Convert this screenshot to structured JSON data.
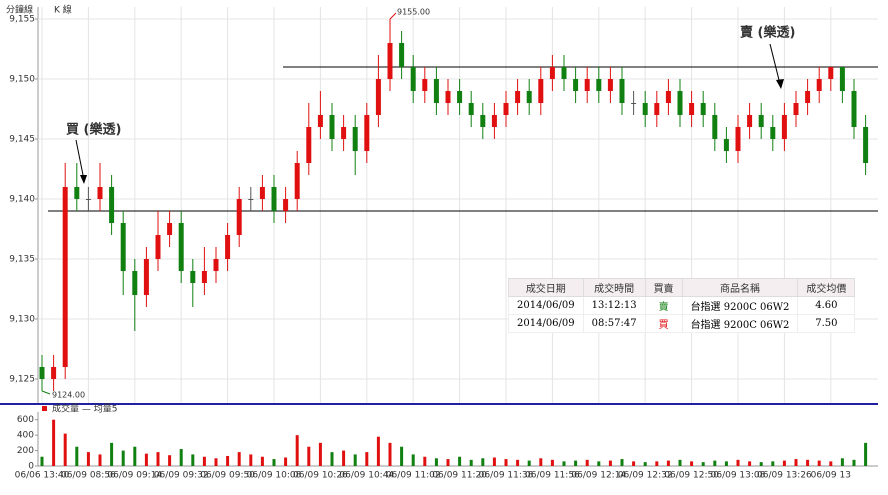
{
  "tabs": [
    "分鐘線",
    "K 線"
  ],
  "chart_data": [
    {
      "type": "candlestick",
      "x": [
        "06/06 13:40",
        null,
        null,
        null,
        "06/09 08:56",
        null,
        null,
        null,
        "06/09 09:14",
        null,
        null,
        null,
        "06/09 09:32",
        null,
        null,
        null,
        "06/09 09:50",
        null,
        null,
        null,
        "06/09 10:08",
        null,
        null,
        null,
        "06/09 10:26",
        null,
        null,
        null,
        "06/09 10:44",
        null,
        null,
        null,
        "06/09 11:02",
        null,
        null,
        null,
        "06/09 11:20",
        null,
        null,
        null,
        "06/09 11:38",
        null,
        null,
        null,
        "06/09 11:56",
        null,
        null,
        null,
        "06/09 12:14",
        null,
        null,
        null,
        "06/09 12:32",
        null,
        null,
        null,
        "06/09 12:50",
        null,
        null,
        null,
        "06/09 13:08",
        null,
        null,
        null,
        "06/09 13:26",
        null,
        null,
        null,
        "06/09 13",
        null,
        null,
        null
      ],
      "open": [
        9126,
        9125,
        9126,
        9141,
        9140,
        9140,
        9141,
        9138,
        9134,
        9132,
        9135,
        9137,
        9138,
        9134,
        9133,
        9134,
        9135,
        9137,
        9140,
        9140,
        9141,
        9139,
        9140,
        9143,
        9146,
        9147,
        9145,
        9146,
        9144,
        9147,
        9150,
        9153,
        9151,
        9149,
        9150,
        9148,
        9149,
        9148,
        9147,
        9146,
        9147,
        9148,
        9149,
        9148,
        9150,
        9151,
        9150,
        9149,
        9150,
        9149,
        9150,
        9148,
        9148,
        9147,
        9148,
        9149,
        9147,
        9148,
        9147,
        9145,
        9144,
        9146,
        9147,
        9146,
        9145,
        9147,
        9148,
        9149,
        9150,
        9151,
        9149,
        9146
      ],
      "high": [
        9127,
        9127,
        9143,
        9143,
        9141,
        9143,
        9142,
        9139,
        9135,
        9136,
        9139,
        9139,
        9139,
        9135,
        9136,
        9136,
        9138,
        9141,
        9141,
        9142,
        9142,
        9141,
        9144,
        9148,
        9149,
        9148,
        9147,
        9147,
        9148,
        9152,
        9155,
        9154,
        9152,
        9151,
        9151,
        9150,
        9150,
        9149,
        9148,
        9148,
        9149,
        9150,
        9150,
        9151,
        9152,
        9152,
        9151,
        9151,
        9151,
        9151,
        9151,
        9149,
        9149,
        9149,
        9150,
        9150,
        9149,
        9149,
        9148,
        9146,
        9147,
        9148,
        9148,
        9147,
        9148,
        9149,
        9150,
        9151,
        9151,
        9151,
        9150,
        9147
      ],
      "low": [
        9124,
        9124,
        9125,
        9139,
        9139,
        9139,
        9137,
        9132,
        9129,
        9131,
        9134,
        9136,
        9133,
        9131,
        9132,
        9133,
        9134,
        9136,
        9139,
        9139,
        9138,
        9138,
        9139,
        9142,
        9145,
        9144,
        9144,
        9142,
        9143,
        9146,
        9149,
        9150,
        9148,
        9148,
        9147,
        9147,
        9147,
        9146,
        9145,
        9145,
        9146,
        9147,
        9147,
        9147,
        9149,
        9149,
        9148,
        9148,
        9148,
        9148,
        9147,
        9147,
        9146,
        9146,
        9147,
        9146,
        9146,
        9146,
        9144,
        9143,
        9143,
        9145,
        9145,
        9144,
        9144,
        9146,
        9147,
        9148,
        9149,
        9148,
        9145,
        9142
      ],
      "close": [
        9125,
        9126,
        9141,
        9140,
        9140,
        9141,
        9138,
        9134,
        9132,
        9135,
        9137,
        9138,
        9134,
        9133,
        9134,
        9135,
        9137,
        9140,
        9140,
        9141,
        9139,
        9140,
        9143,
        9146,
        9147,
        9145,
        9146,
        9144,
        9147,
        9150,
        9153,
        9151,
        9149,
        9150,
        9148,
        9149,
        9148,
        9147,
        9146,
        9147,
        9148,
        9149,
        9148,
        9150,
        9151,
        9150,
        9149,
        9150,
        9149,
        9150,
        9148,
        9148,
        9147,
        9148,
        9149,
        9147,
        9148,
        9147,
        9145,
        9144,
        9146,
        9147,
        9146,
        9145,
        9147,
        9148,
        9149,
        9150,
        9151,
        9149,
        9146,
        9143
      ],
      "up_color": "#e01010",
      "down_color": "#108010",
      "ylim": [
        9123,
        9156
      ],
      "yticks": [
        {
          "value": 9125,
          "label": "9,125"
        },
        {
          "value": 9130,
          "label": "9,130"
        },
        {
          "value": 9135,
          "label": "9,135"
        },
        {
          "value": 9140,
          "label": "9,140"
        },
        {
          "value": 9145,
          "label": "9,145"
        },
        {
          "value": 9150,
          "label": "9,150"
        },
        {
          "value": 9155,
          "label": "9,155"
        }
      ],
      "grid": true,
      "hlines": [
        9151,
        9139
      ],
      "max_label": {
        "value": 9155,
        "label": "9155.00"
      },
      "min_label": {
        "value": 9124,
        "label": "9124.00"
      },
      "buy_note": "買 (樂透)",
      "sell_note": "賣 (樂透)"
    },
    {
      "type": "bar",
      "title": "成交量 — 均量5",
      "values": [
        120,
        600,
        420,
        250,
        180,
        150,
        300,
        200,
        250,
        160,
        180,
        140,
        220,
        150,
        120,
        100,
        130,
        180,
        150,
        120,
        90,
        110,
        400,
        250,
        300,
        180,
        200,
        150,
        180,
        380,
        300,
        250,
        150,
        120,
        100,
        90,
        120,
        80,
        100,
        110,
        90,
        80,
        70,
        100,
        80,
        60,
        70,
        80,
        60,
        70,
        90,
        60,
        50,
        60,
        70,
        80,
        60,
        50,
        70,
        60,
        80,
        60,
        50,
        60,
        70,
        90,
        80,
        70,
        60,
        100,
        80,
        300
      ],
      "ylim": [
        0,
        700
      ],
      "yticks": [
        0,
        200,
        400,
        600
      ]
    }
  ],
  "table": {
    "headers": [
      "成交日期",
      "成交時間",
      "買賣",
      "商品名稱",
      "成交均價"
    ],
    "rows": [
      [
        "2014/06/09",
        "13:12:13",
        "賣",
        "台指選 9200C 06W2",
        "4.60"
      ],
      [
        "2014/06/09",
        "08:57:47",
        "買",
        "台指選 9200C 06W2",
        "7.50"
      ]
    ]
  }
}
